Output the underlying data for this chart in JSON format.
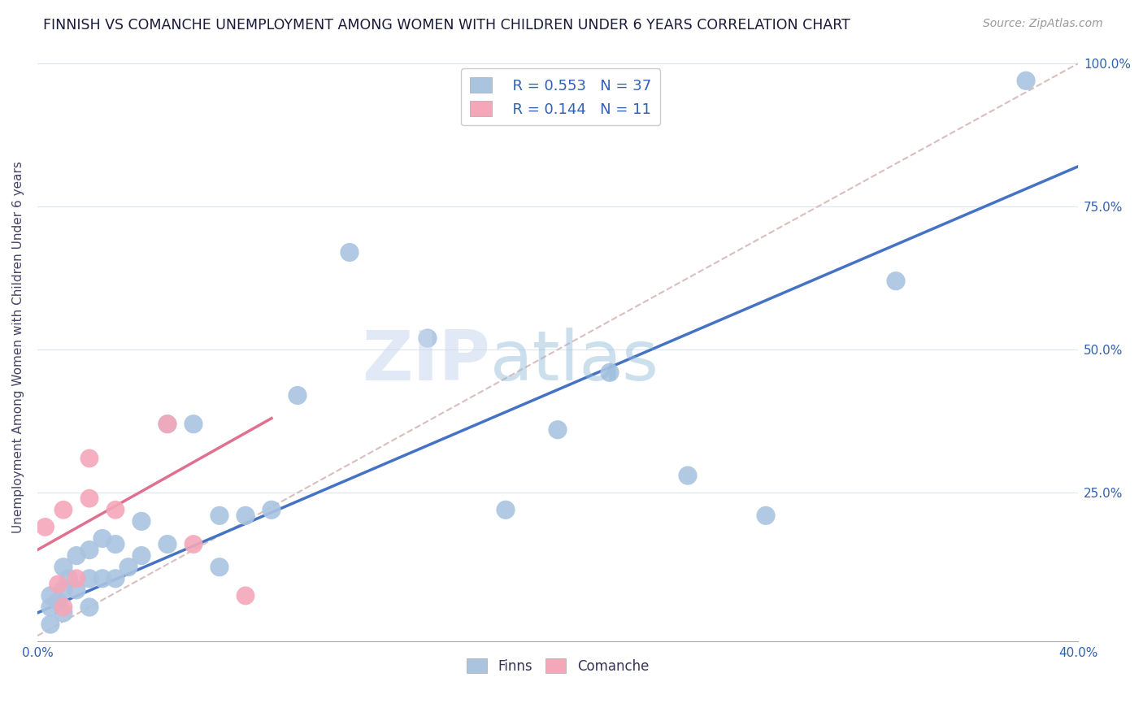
{
  "title": "FINNISH VS COMANCHE UNEMPLOYMENT AMONG WOMEN WITH CHILDREN UNDER 6 YEARS CORRELATION CHART",
  "source": "Source: ZipAtlas.com",
  "ylabel": "Unemployment Among Women with Children Under 6 years",
  "xlim": [
    0.0,
    0.4
  ],
  "ylim": [
    -0.01,
    1.02
  ],
  "xticks": [
    0.0,
    0.05,
    0.1,
    0.15,
    0.2,
    0.25,
    0.3,
    0.35,
    0.4
  ],
  "xticklabels": [
    "0.0%",
    "",
    "",
    "",
    "",
    "",
    "",
    "",
    "40.0%"
  ],
  "yticks": [
    0.0,
    0.25,
    0.5,
    0.75,
    1.0
  ],
  "yticklabels": [
    "",
    "25.0%",
    "50.0%",
    "75.0%",
    "100.0%"
  ],
  "finns_R": 0.553,
  "finns_N": 37,
  "comanche_R": 0.144,
  "comanche_N": 11,
  "finns_color": "#aac4e0",
  "comanche_color": "#f4a7b9",
  "finns_line_color": "#4472c4",
  "comanche_line_color": "#e07090",
  "diagonal_color": "#d4b8b8",
  "background_color": "#ffffff",
  "grid_color": "#dce6f0",
  "watermark_zip": "ZIP",
  "watermark_atlas": "atlas",
  "finns_x": [
    0.005,
    0.005,
    0.005,
    0.008,
    0.01,
    0.01,
    0.01,
    0.012,
    0.015,
    0.015,
    0.02,
    0.02,
    0.02,
    0.025,
    0.025,
    0.03,
    0.03,
    0.035,
    0.04,
    0.04,
    0.05,
    0.05,
    0.06,
    0.07,
    0.07,
    0.08,
    0.09,
    0.1,
    0.12,
    0.15,
    0.18,
    0.2,
    0.22,
    0.25,
    0.28,
    0.33,
    0.38
  ],
  "finns_y": [
    0.02,
    0.05,
    0.07,
    0.06,
    0.04,
    0.08,
    0.12,
    0.1,
    0.08,
    0.14,
    0.05,
    0.1,
    0.15,
    0.1,
    0.17,
    0.1,
    0.16,
    0.12,
    0.14,
    0.2,
    0.16,
    0.37,
    0.37,
    0.12,
    0.21,
    0.21,
    0.22,
    0.42,
    0.67,
    0.52,
    0.22,
    0.36,
    0.46,
    0.28,
    0.21,
    0.62,
    0.97
  ],
  "comanche_x": [
    0.003,
    0.008,
    0.01,
    0.01,
    0.015,
    0.02,
    0.02,
    0.03,
    0.05,
    0.06,
    0.08
  ],
  "comanche_y": [
    0.19,
    0.09,
    0.22,
    0.05,
    0.1,
    0.24,
    0.31,
    0.22,
    0.37,
    0.16,
    0.07
  ],
  "finns_line_x": [
    0.0,
    0.4
  ],
  "finns_line_y": [
    0.04,
    0.82
  ],
  "comanche_line_x": [
    0.0,
    0.09
  ],
  "comanche_line_y": [
    0.15,
    0.38
  ]
}
